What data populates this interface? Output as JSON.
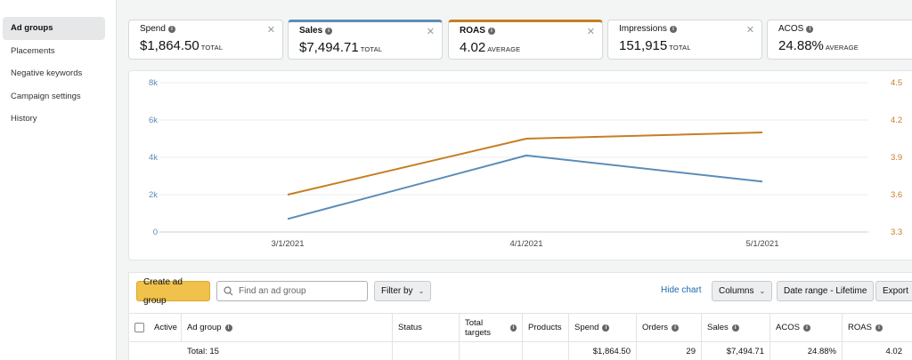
{
  "sidebar": {
    "items": [
      {
        "label": "Ad groups"
      },
      {
        "label": "Placements"
      },
      {
        "label": "Negative keywords"
      },
      {
        "label": "Campaign settings"
      },
      {
        "label": "History"
      }
    ]
  },
  "metrics": [
    {
      "label": "Spend",
      "value": "$1,864.50",
      "unit": "TOTAL"
    },
    {
      "label": "Sales",
      "value": "$7,494.71",
      "unit": "TOTAL",
      "accent": "#5b8db8"
    },
    {
      "label": "ROAS",
      "value": "4.02",
      "unit": "AVERAGE",
      "accent": "#c47f24"
    },
    {
      "label": "Impressions",
      "value": "151,915",
      "unit": "TOTAL"
    },
    {
      "label": "ACOS",
      "value": "24.88%",
      "unit": "AVERAGE"
    }
  ],
  "icons": {
    "close": "close-icon",
    "info": "info-icon",
    "search": "search-icon",
    "chevron": "chevron-down-icon"
  },
  "chart_data": {
    "type": "line",
    "x": [
      "3/1/2021",
      "4/1/2021",
      "5/1/2021"
    ],
    "series": [
      {
        "name": "Sales",
        "axis": "left",
        "color": "#5b8db8",
        "values": [
          700,
          4100,
          2700
        ]
      },
      {
        "name": "ROAS",
        "axis": "right",
        "color": "#c47f24",
        "values": [
          3.6,
          4.05,
          4.1
        ]
      }
    ],
    "y_left": {
      "range": [
        0,
        8000
      ],
      "ticks": [
        "0",
        "2k",
        "4k",
        "6k",
        "8k"
      ],
      "color": "#5b8db8"
    },
    "y_right": {
      "range": [
        3.3,
        4.5
      ],
      "ticks": [
        "3.3",
        "3.6",
        "3.9",
        "4.2",
        "4.5"
      ],
      "color": "#c47f24"
    },
    "grid": true
  },
  "toolbar": {
    "create_label": "Create ad group",
    "search_placeholder": "Find an ad group",
    "search_value": "",
    "filter_label": "Filter by",
    "hide_chart_label": "Hide chart",
    "columns_label": "Columns",
    "date_range_label": "Date range - Lifetime",
    "export_label": "Export"
  },
  "table": {
    "headers": {
      "active": "Active",
      "ad_group": "Ad group",
      "status": "Status",
      "total_targets": "Total targets",
      "products": "Products",
      "spend": "Spend",
      "orders": "Orders",
      "sales": "Sales",
      "acos": "ACOS",
      "roas": "ROAS"
    },
    "total_row": {
      "label": "Total: 15",
      "spend": "$1,864.50",
      "orders": "29",
      "sales": "$7,494.71",
      "acos": "24.88%",
      "roas": "4.02"
    }
  }
}
